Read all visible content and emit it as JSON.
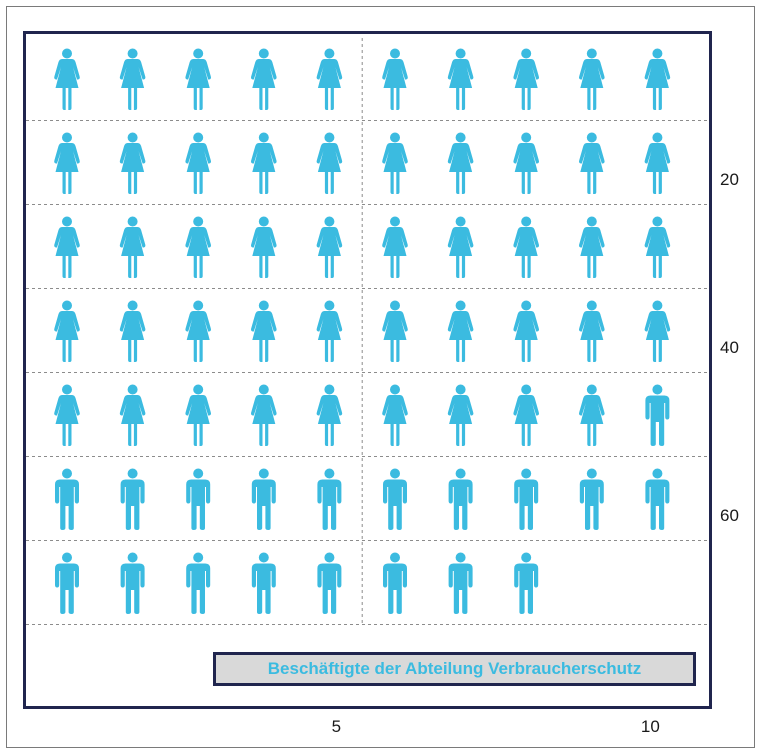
{
  "chart_data": {
    "type": "pictogram",
    "title": "",
    "columns": 10,
    "total": 68,
    "series": [
      {
        "name": "",
        "icon": "female-person-icon",
        "count": 49
      },
      {
        "name": "",
        "icon": "male-person-icon",
        "count": 19
      }
    ],
    "x_ticks": [
      {
        "value": 5,
        "label": "5"
      },
      {
        "value": 10,
        "label": "10"
      }
    ],
    "y_ticks": [
      {
        "value": 20,
        "label": "20"
      },
      {
        "value": 40,
        "label": "40"
      },
      {
        "value": 60,
        "label": "60"
      }
    ],
    "legend": {
      "label": "Beschäftigte der Abteilung Verbraucherschutz",
      "position": "bottom-right"
    },
    "grid": true
  },
  "colors": {
    "icon": "#3bbbe0",
    "frame": "#20254e",
    "grid": "#8c8c8c",
    "legend_background": "#d9d9d9",
    "legend_text": "#3bbbe0"
  }
}
